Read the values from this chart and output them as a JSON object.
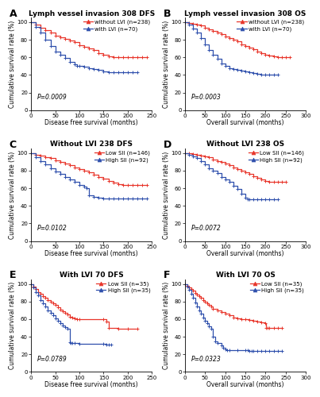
{
  "panels": [
    {
      "label": "A",
      "title": "Lymph vessel invasion 308 DFS",
      "xlabel": "Disease free survival (months)",
      "ylabel": "Cumulative survival rate (%)",
      "pvalue": "P=0.0009",
      "xlim": [
        0,
        250
      ],
      "ylim": [
        0,
        105
      ],
      "xticks": [
        0,
        50,
        100,
        150,
        200,
        250
      ],
      "yticks": [
        0,
        20,
        40,
        60,
        80,
        100
      ],
      "curves": [
        {
          "label": "without LVI (n=238)",
          "color": "#e8352a",
          "times": [
            0,
            10,
            20,
            30,
            40,
            50,
            60,
            70,
            80,
            90,
            100,
            110,
            120,
            130,
            140,
            150,
            160,
            170,
            180,
            190,
            200,
            210,
            220,
            230,
            240
          ],
          "surv": [
            100,
            97,
            94,
            91,
            88,
            85,
            83,
            81,
            79,
            77,
            74,
            72,
            70,
            68,
            65,
            63,
            61,
            60,
            60,
            60,
            60,
            60,
            60,
            60,
            60
          ]
        },
        {
          "label": "with LVI (n=70)",
          "color": "#2e4fac",
          "times": [
            0,
            10,
            20,
            30,
            40,
            50,
            60,
            70,
            80,
            90,
            95,
            100,
            110,
            120,
            130,
            140,
            150,
            160,
            170,
            180,
            190,
            200,
            210,
            220
          ],
          "surv": [
            100,
            95,
            88,
            80,
            73,
            67,
            63,
            59,
            55,
            52,
            50,
            50,
            49,
            48,
            47,
            46,
            44,
            43,
            43,
            43,
            43,
            43,
            43,
            43
          ]
        }
      ]
    },
    {
      "label": "B",
      "title": "Lymph vessel invasion 308 OS",
      "xlabel": "Overall survival (months)",
      "ylabel": "Cumulative survival rate (%)",
      "pvalue": "P=0.0003",
      "xlim": [
        0,
        300
      ],
      "ylim": [
        0,
        105
      ],
      "xticks": [
        0,
        50,
        100,
        150,
        200,
        250,
        300
      ],
      "yticks": [
        0,
        20,
        40,
        60,
        80,
        100
      ],
      "curves": [
        {
          "label": "without LVI (n=238)",
          "color": "#e8352a",
          "times": [
            0,
            10,
            20,
            30,
            40,
            50,
            60,
            70,
            80,
            90,
            100,
            110,
            120,
            130,
            140,
            150,
            160,
            170,
            180,
            190,
            200,
            210,
            220,
            230,
            240,
            250,
            260
          ],
          "surv": [
            100,
            99,
            98,
            97,
            96,
            94,
            92,
            90,
            88,
            86,
            84,
            82,
            80,
            78,
            75,
            73,
            71,
            69,
            67,
            65,
            63,
            62,
            61,
            60,
            60,
            60,
            60
          ]
        },
        {
          "label": "with LVI (n=70)",
          "color": "#2e4fac",
          "times": [
            0,
            10,
            20,
            30,
            40,
            50,
            60,
            70,
            80,
            90,
            100,
            110,
            120,
            130,
            140,
            150,
            160,
            170,
            180,
            190,
            200,
            210,
            220,
            230
          ],
          "surv": [
            100,
            97,
            93,
            88,
            82,
            75,
            68,
            63,
            58,
            53,
            50,
            48,
            47,
            46,
            45,
            44,
            43,
            42,
            41,
            40,
            40,
            40,
            40,
            40
          ]
        }
      ]
    },
    {
      "label": "C",
      "title": "Without LVI 238 DFS",
      "xlabel": "Disease free survival (months)",
      "ylabel": "Cumulative survival rate (%)",
      "pvalue": "P=0.0102",
      "xlim": [
        0,
        250
      ],
      "ylim": [
        0,
        105
      ],
      "xticks": [
        0,
        50,
        100,
        150,
        200,
        250
      ],
      "yticks": [
        0,
        20,
        40,
        60,
        80,
        100
      ],
      "curves": [
        {
          "label": "Low SII (n=146)",
          "color": "#e8352a",
          "times": [
            0,
            10,
            20,
            30,
            40,
            50,
            60,
            70,
            80,
            90,
            100,
            110,
            120,
            130,
            140,
            150,
            160,
            170,
            180,
            190,
            200,
            210,
            220,
            230,
            240
          ],
          "surv": [
            100,
            98,
            97,
            95,
            94,
            92,
            90,
            88,
            86,
            84,
            82,
            80,
            78,
            75,
            73,
            71,
            68,
            66,
            65,
            64,
            64,
            64,
            64,
            64,
            64
          ]
        },
        {
          "label": "High SII (n=92)",
          "color": "#2e4fac",
          "times": [
            0,
            10,
            20,
            30,
            40,
            50,
            60,
            70,
            80,
            90,
            100,
            110,
            115,
            120,
            130,
            140,
            150,
            160,
            170,
            180,
            190,
            200,
            210,
            220,
            230,
            240
          ],
          "surv": [
            100,
            95,
            91,
            87,
            83,
            79,
            76,
            73,
            70,
            67,
            64,
            62,
            60,
            52,
            50,
            49,
            48,
            48,
            48,
            48,
            48,
            48,
            48,
            48,
            48,
            48
          ]
        }
      ]
    },
    {
      "label": "D",
      "title": "Without LVI 238 OS",
      "xlabel": "Overall survival (months)",
      "ylabel": "Cumulative survival rate (%)",
      "pvalue": "P=0.0072",
      "xlim": [
        0,
        300
      ],
      "ylim": [
        0,
        105
      ],
      "xticks": [
        0,
        50,
        100,
        150,
        200,
        250,
        300
      ],
      "yticks": [
        0,
        20,
        40,
        60,
        80,
        100
      ],
      "curves": [
        {
          "label": "Low SII (n=146)",
          "color": "#e8352a",
          "times": [
            0,
            10,
            20,
            30,
            40,
            50,
            60,
            70,
            80,
            90,
            100,
            110,
            120,
            130,
            140,
            150,
            160,
            170,
            180,
            190,
            200,
            210,
            220,
            230,
            240,
            250
          ],
          "surv": [
            100,
            100,
            99,
            98,
            97,
            96,
            95,
            93,
            91,
            90,
            88,
            86,
            84,
            82,
            80,
            78,
            76,
            74,
            72,
            70,
            68,
            67,
            67,
            67,
            67,
            67
          ]
        },
        {
          "label": "High SII (n=92)",
          "color": "#2e4fac",
          "times": [
            0,
            10,
            20,
            30,
            40,
            50,
            60,
            70,
            80,
            90,
            100,
            110,
            120,
            130,
            140,
            150,
            155,
            160,
            170,
            180,
            190,
            200,
            210,
            220,
            230
          ],
          "surv": [
            100,
            98,
            96,
            94,
            91,
            87,
            83,
            80,
            77,
            73,
            70,
            67,
            63,
            59,
            54,
            49,
            47,
            47,
            47,
            47,
            47,
            47,
            47,
            47,
            47
          ]
        }
      ]
    },
    {
      "label": "E",
      "title": "With LVI 70 DFS",
      "xlabel": "Disease free survival (months)",
      "ylabel": "Cumulative survival rate (%)",
      "pvalue": "P=0.0789",
      "xlim": [
        0,
        250
      ],
      "ylim": [
        0,
        105
      ],
      "xticks": [
        0,
        50,
        100,
        150,
        200,
        250
      ],
      "yticks": [
        0,
        20,
        40,
        60,
        80,
        100
      ],
      "curves": [
        {
          "label": "Low SII (n=35)",
          "color": "#e8352a",
          "times": [
            0,
            5,
            10,
            15,
            20,
            25,
            30,
            35,
            40,
            45,
            50,
            55,
            60,
            65,
            70,
            75,
            80,
            85,
            90,
            95,
            100,
            150,
            155,
            160,
            180,
            200,
            220
          ],
          "surv": [
            100,
            97,
            94,
            91,
            89,
            86,
            84,
            82,
            80,
            78,
            76,
            73,
            71,
            69,
            67,
            65,
            63,
            62,
            61,
            60,
            60,
            60,
            57,
            50,
            49,
            49,
            49
          ]
        },
        {
          "label": "High SII (n=35)",
          "color": "#2e4fac",
          "times": [
            0,
            5,
            10,
            15,
            20,
            25,
            30,
            35,
            40,
            45,
            50,
            55,
            60,
            65,
            70,
            75,
            80,
            82,
            85,
            90,
            100,
            150,
            155,
            160,
            165
          ],
          "surv": [
            100,
            96,
            91,
            87,
            82,
            78,
            74,
            70,
            67,
            64,
            61,
            58,
            55,
            53,
            51,
            49,
            34,
            33,
            33,
            33,
            32,
            32,
            31,
            31,
            31
          ]
        }
      ]
    },
    {
      "label": "F",
      "title": "With LVI 70 OS",
      "xlabel": "Overall survival (months)",
      "ylabel": "Cumulative survival rate (%)",
      "pvalue": "P=0.0323",
      "xlim": [
        0,
        300
      ],
      "ylim": [
        0,
        105
      ],
      "xticks": [
        0,
        50,
        100,
        150,
        200,
        250,
        300
      ],
      "yticks": [
        0,
        20,
        40,
        60,
        80,
        100
      ],
      "curves": [
        {
          "label": "Low SII (n=35)",
          "color": "#e8352a",
          "times": [
            0,
            5,
            10,
            15,
            20,
            25,
            30,
            35,
            40,
            45,
            50,
            55,
            60,
            65,
            70,
            80,
            90,
            100,
            110,
            120,
            130,
            140,
            150,
            160,
            170,
            180,
            190,
            200,
            202,
            205,
            210,
            220,
            230,
            240
          ],
          "surv": [
            100,
            98,
            96,
            94,
            92,
            90,
            88,
            86,
            84,
            82,
            80,
            78,
            76,
            74,
            72,
            70,
            68,
            66,
            64,
            62,
            61,
            60,
            60,
            59,
            58,
            57,
            56,
            55,
            50,
            50,
            50,
            50,
            50,
            50
          ]
        },
        {
          "label": "High SII (n=35)",
          "color": "#2e4fac",
          "times": [
            0,
            5,
            10,
            15,
            20,
            25,
            30,
            35,
            40,
            45,
            50,
            55,
            60,
            65,
            70,
            75,
            80,
            90,
            95,
            100,
            105,
            110,
            130,
            150,
            155,
            160,
            165,
            170,
            180,
            190,
            200,
            210,
            220,
            230,
            240
          ],
          "surv": [
            100,
            97,
            93,
            89,
            84,
            79,
            74,
            70,
            66,
            62,
            58,
            55,
            52,
            49,
            40,
            35,
            33,
            30,
            27,
            26,
            25,
            25,
            25,
            25,
            25,
            24,
            24,
            24,
            24,
            24,
            24,
            24,
            24,
            24,
            24
          ]
        }
      ]
    }
  ],
  "bg_color": "#ffffff",
  "title_fontsize": 6.5,
  "label_fontsize": 5.5,
  "tick_fontsize": 5,
  "legend_fontsize": 5,
  "pvalue_fontsize": 5.5,
  "panel_label_fontsize": 9
}
